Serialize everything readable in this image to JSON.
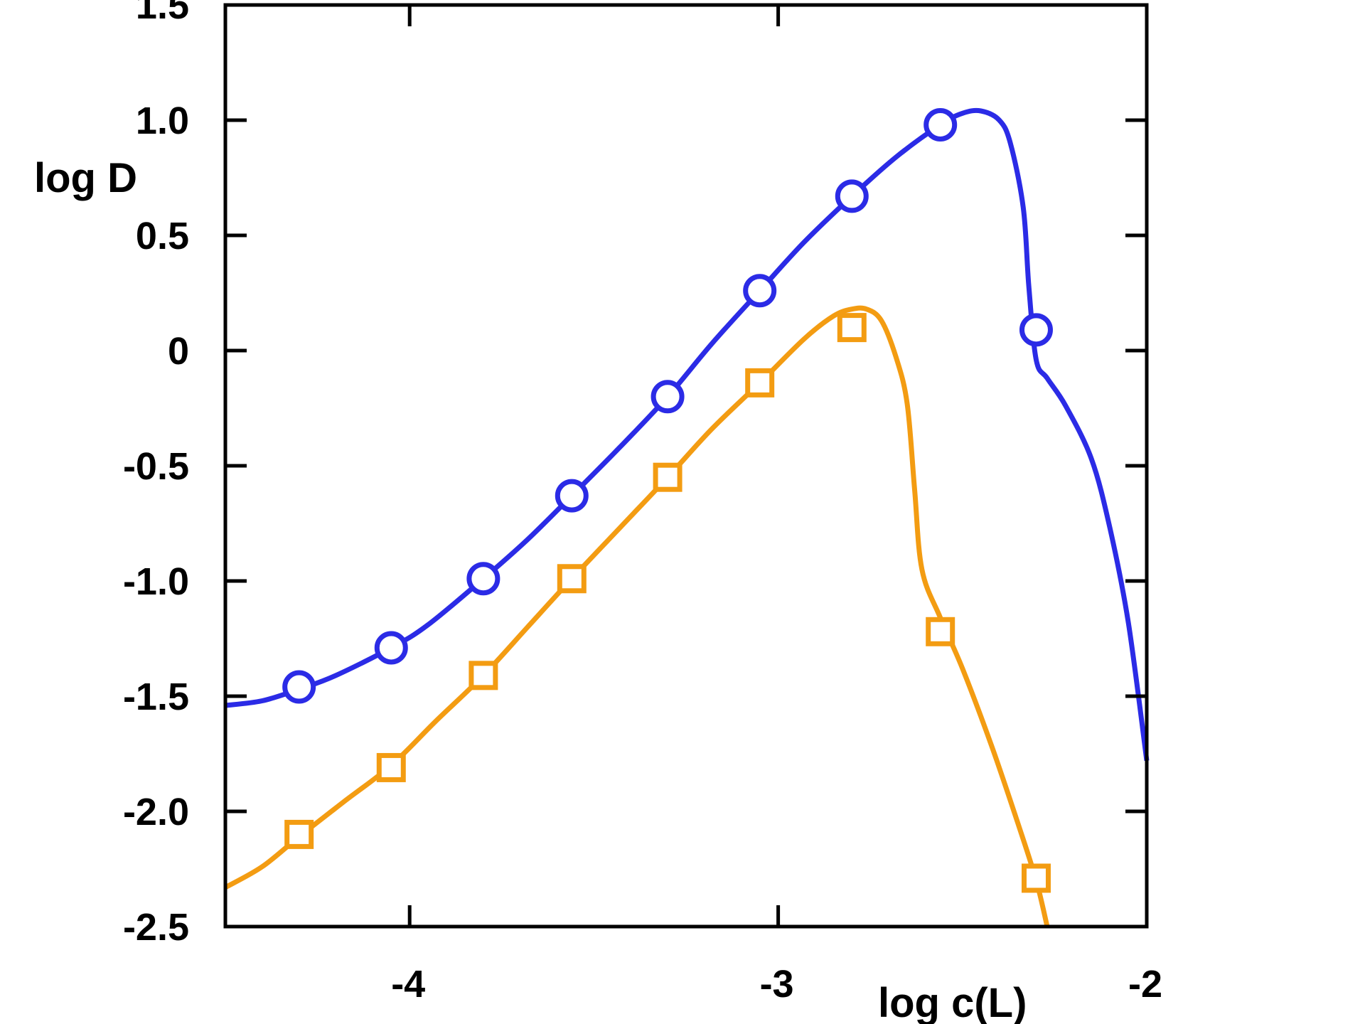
{
  "chart_data": {
    "type": "line",
    "title": "",
    "xlabel": "log c(L)",
    "ylabel": "log D",
    "xlim": [
      -4.5,
      -2.0
    ],
    "ylim": [
      -2.5,
      1.5
    ],
    "x_ticks": [
      -4,
      -3,
      -2
    ],
    "x_tick_labels": [
      "-4",
      "-3",
      "-2"
    ],
    "y_ticks": [
      1.5,
      1.0,
      0.5,
      0,
      -0.5,
      -1.0,
      -1.5,
      -2.0,
      -2.5
    ],
    "y_tick_labels": [
      "1.5",
      "1.0",
      "0.5",
      "0",
      "-0.5",
      "-1.0",
      "-1.5",
      "-2.0",
      "-2.5"
    ],
    "grid": false,
    "series": [
      {
        "name": "circles",
        "color": "#2b2be6",
        "marker": "circle",
        "points": [
          [
            -4.3,
            -1.46
          ],
          [
            -4.05,
            -1.29
          ],
          [
            -3.8,
            -0.99
          ],
          [
            -3.56,
            -0.63
          ],
          [
            -3.3,
            -0.2
          ],
          [
            -3.05,
            0.26
          ],
          [
            -2.8,
            0.67
          ],
          [
            -2.56,
            0.98
          ],
          [
            -2.3,
            0.09
          ]
        ],
        "curve": [
          [
            -4.5,
            -1.54
          ],
          [
            -4.4,
            -1.52
          ],
          [
            -4.3,
            -1.47
          ],
          [
            -4.2,
            -1.41
          ],
          [
            -4.05,
            -1.29
          ],
          [
            -3.95,
            -1.19
          ],
          [
            -3.8,
            -0.99
          ],
          [
            -3.68,
            -0.82
          ],
          [
            -3.56,
            -0.63
          ],
          [
            -3.43,
            -0.42
          ],
          [
            -3.3,
            -0.2
          ],
          [
            -3.18,
            0.03
          ],
          [
            -3.05,
            0.26
          ],
          [
            -2.93,
            0.47
          ],
          [
            -2.8,
            0.67
          ],
          [
            -2.68,
            0.84
          ],
          [
            -2.56,
            0.98
          ],
          [
            -2.5,
            1.03
          ],
          [
            -2.45,
            1.04
          ],
          [
            -2.4,
            1.0
          ],
          [
            -2.37,
            0.9
          ],
          [
            -2.335,
            0.62
          ],
          [
            -2.32,
            0.28
          ],
          [
            -2.3,
            -0.04
          ],
          [
            -2.27,
            -0.12
          ],
          [
            -2.22,
            -0.24
          ],
          [
            -2.15,
            -0.47
          ],
          [
            -2.1,
            -0.77
          ],
          [
            -2.05,
            -1.18
          ],
          [
            -2.0,
            -1.78
          ]
        ]
      },
      {
        "name": "squares",
        "color": "#f39c12",
        "marker": "square",
        "points": [
          [
            -4.3,
            -2.1
          ],
          [
            -4.05,
            -1.81
          ],
          [
            -3.8,
            -1.41
          ],
          [
            -3.56,
            -0.99
          ],
          [
            -3.3,
            -0.55
          ],
          [
            -3.05,
            -0.14
          ],
          [
            -2.8,
            0.1
          ],
          [
            -2.56,
            -1.22
          ],
          [
            -2.3,
            -2.29
          ]
        ],
        "curve": [
          [
            -4.5,
            -2.33
          ],
          [
            -4.4,
            -2.24
          ],
          [
            -4.3,
            -2.11
          ],
          [
            -4.18,
            -1.96
          ],
          [
            -4.05,
            -1.8
          ],
          [
            -3.93,
            -1.61
          ],
          [
            -3.8,
            -1.41
          ],
          [
            -3.68,
            -1.2
          ],
          [
            -3.56,
            -0.99
          ],
          [
            -3.43,
            -0.77
          ],
          [
            -3.3,
            -0.55
          ],
          [
            -3.18,
            -0.34
          ],
          [
            -3.05,
            -0.14
          ],
          [
            -2.93,
            0.05
          ],
          [
            -2.85,
            0.15
          ],
          [
            -2.8,
            0.18
          ],
          [
            -2.76,
            0.18
          ],
          [
            -2.72,
            0.13
          ],
          [
            -2.68,
            -0.03
          ],
          [
            -2.65,
            -0.23
          ],
          [
            -2.63,
            -0.6
          ],
          [
            -2.61,
            -0.95
          ],
          [
            -2.56,
            -1.16
          ],
          [
            -2.5,
            -1.38
          ],
          [
            -2.42,
            -1.72
          ],
          [
            -2.35,
            -2.05
          ],
          [
            -2.3,
            -2.3
          ],
          [
            -2.27,
            -2.5
          ]
        ]
      }
    ]
  }
}
